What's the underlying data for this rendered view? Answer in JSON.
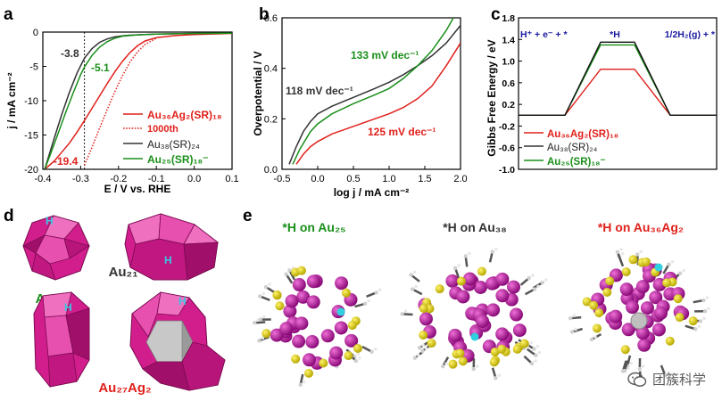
{
  "panels": {
    "a": "a",
    "b": "b",
    "c": "c",
    "d": "d",
    "e": "e"
  },
  "chart_data": [
    {
      "type": "line",
      "panel": "a",
      "xlabel": "E / V vs. RHE",
      "ylabel": "j / mA cm⁻²",
      "xlim": [
        -0.4,
        0.1
      ],
      "ylim": [
        -20,
        0
      ],
      "xticks": [
        "-0.4",
        "-0.3",
        "-0.2",
        "-0.1",
        "0.0",
        "0.1"
      ],
      "yticks": [
        "0",
        "-5",
        "-10",
        "-15",
        "-20"
      ],
      "reference_line_x": -0.29,
      "annotations": [
        {
          "text": "-3.8",
          "color": "#333333"
        },
        {
          "text": "-5.1",
          "color": "#1a8f1a"
        },
        {
          "text": "-19.4",
          "color": "#e0201b"
        }
      ],
      "legend": [
        {
          "text": "Au₃₆Ag₂(SR)₁₈",
          "color": "#e0201b",
          "style": "solid"
        },
        {
          "text": "1000th",
          "color": "#e0201b",
          "style": "dotted"
        },
        {
          "text": "Au₃₈(SR)₂₄",
          "color": "#333333",
          "style": "solid"
        },
        {
          "text": "Au₂₅(SR)₁₈⁻",
          "color": "#1a8f1a",
          "style": "solid"
        }
      ],
      "series": [
        {
          "color": "#e0201b",
          "x": [
            -0.395,
            -0.37,
            -0.35,
            -0.33,
            -0.31,
            -0.29,
            -0.27,
            -0.25,
            -0.23,
            -0.21,
            -0.19,
            -0.17,
            -0.15,
            -0.13,
            -0.1,
            -0.05,
            0.0,
            0.1
          ],
          "y": [
            -20,
            -18.8,
            -17.5,
            -16.2,
            -14.6,
            -12.9,
            -11.1,
            -9.3,
            -7.5,
            -5.8,
            -4.3,
            -3.0,
            -2.0,
            -1.3,
            -0.8,
            -0.5,
            -0.35,
            -0.2
          ]
        },
        {
          "color": "#e0201b",
          "dotted": true,
          "x": [
            -0.29,
            -0.27,
            -0.25,
            -0.23,
            -0.21,
            -0.19,
            -0.17,
            -0.15,
            -0.13,
            -0.1
          ],
          "y": [
            -19.4,
            -16.8,
            -14.0,
            -11.3,
            -8.7,
            -6.4,
            -4.4,
            -2.9,
            -1.8,
            -0.9
          ]
        },
        {
          "color": "#333333",
          "x": [
            -0.395,
            -0.37,
            -0.35,
            -0.33,
            -0.31,
            -0.29,
            -0.27,
            -0.25,
            -0.23,
            -0.21,
            -0.19,
            -0.17,
            -0.15,
            -0.1,
            -0.05,
            0.0,
            0.1
          ],
          "y": [
            -20,
            -15.5,
            -12.0,
            -8.8,
            -6.0,
            -3.8,
            -2.4,
            -1.5,
            -1.0,
            -0.7,
            -0.55,
            -0.45,
            -0.4,
            -0.3,
            -0.25,
            -0.2,
            -0.15
          ]
        },
        {
          "color": "#1a8f1a",
          "x": [
            -0.395,
            -0.38,
            -0.36,
            -0.34,
            -0.32,
            -0.3,
            -0.29,
            -0.27,
            -0.25,
            -0.23,
            -0.21,
            -0.19,
            -0.15,
            -0.1,
            0.0,
            0.1
          ],
          "y": [
            -20,
            -17.8,
            -14.8,
            -11.8,
            -8.9,
            -6.2,
            -5.1,
            -3.4,
            -2.2,
            -1.4,
            -0.9,
            -0.6,
            -0.4,
            -0.3,
            -0.2,
            -0.15
          ]
        }
      ]
    },
    {
      "type": "line",
      "panel": "b",
      "xlabel": "log j / mA cm⁻²",
      "ylabel": "Overpotential / V",
      "xlim": [
        -0.5,
        2.0
      ],
      "ylim": [
        0,
        0.6
      ],
      "xticks": [
        "-0.5",
        "0.0",
        "0.5",
        "1.0",
        "1.5",
        "2.0"
      ],
      "yticks": [
        "0.0",
        "0.2",
        "0.4",
        "0.6"
      ],
      "annotations": [
        {
          "text": "133 mV dec⁻¹",
          "color": "#1a8f1a"
        },
        {
          "text": "118 mV dec⁻¹",
          "color": "#333333"
        },
        {
          "text": "125 mV dec⁻¹",
          "color": "#e0201b"
        }
      ],
      "series": [
        {
          "color": "#e0201b",
          "x": [
            -0.3,
            -0.2,
            -0.1,
            0.0,
            0.2,
            0.5,
            0.8,
            1.0,
            1.2,
            1.4,
            1.6,
            1.8,
            2.0
          ],
          "y": [
            0.02,
            0.06,
            0.09,
            0.11,
            0.14,
            0.17,
            0.2,
            0.22,
            0.245,
            0.28,
            0.33,
            0.41,
            0.5
          ]
        },
        {
          "color": "#333333",
          "x": [
            -0.4,
            -0.3,
            -0.2,
            -0.1,
            0.0,
            0.2,
            0.5,
            0.8,
            1.0,
            1.2,
            1.4,
            1.6,
            1.8,
            2.0
          ],
          "y": [
            0.02,
            0.09,
            0.15,
            0.19,
            0.22,
            0.25,
            0.285,
            0.32,
            0.345,
            0.375,
            0.41,
            0.45,
            0.5,
            0.57
          ]
        },
        {
          "color": "#1a8f1a",
          "x": [
            -0.35,
            -0.25,
            -0.1,
            0.0,
            0.2,
            0.5,
            0.8,
            1.0,
            1.2,
            1.4,
            1.6,
            1.8,
            1.9
          ],
          "y": [
            0.02,
            0.08,
            0.15,
            0.18,
            0.22,
            0.26,
            0.295,
            0.32,
            0.36,
            0.41,
            0.47,
            0.55,
            0.6
          ]
        }
      ]
    },
    {
      "type": "line",
      "panel": "c",
      "ylabel": "Gibbs Free Energy / eV",
      "ylim": [
        -1.0,
        1.8
      ],
      "yticks": [
        "1.8",
        "1.4",
        "1.0",
        "0.6",
        "0.2",
        "-0.2",
        "-0.6",
        "-1.0"
      ],
      "states": [
        "H⁺ + e⁻ + *",
        "*H",
        "1/2H₂(g) + *"
      ],
      "legend": [
        {
          "text": "Au₃₆Ag₂(SR)₁₈",
          "color": "#e0201b"
        },
        {
          "text": "Au₃₈(SR)₂₄",
          "color": "#333333"
        },
        {
          "text": "Au₂₅(SR)₁₈⁻",
          "color": "#1a8f1a"
        }
      ],
      "series": [
        {
          "color": "#e0201b",
          "values": [
            0,
            0.85,
            0
          ]
        },
        {
          "color": "#1a8f1a",
          "values": [
            0,
            1.3,
            0
          ]
        },
        {
          "color": "#111111",
          "values": [
            0,
            1.35,
            0
          ]
        }
      ]
    }
  ],
  "panel_d": {
    "labels": [
      {
        "text": "Au₁₂",
        "color": "#1a8f1a"
      },
      {
        "text": "Au₂₁",
        "color": "#333333"
      },
      {
        "text": "Au₂₇Ag₂",
        "color": "#e0201b"
      }
    ],
    "h_marker": "H"
  },
  "panel_e": {
    "titles": [
      {
        "text": "*H on Au₂₅",
        "color": "#1a8f1a"
      },
      {
        "text": "*H on Au₃₈",
        "color": "#333333"
      },
      {
        "text": "*H on Au₃₆Ag₂",
        "color": "#e0201b"
      }
    ]
  },
  "watermark": {
    "text": "团簇科学",
    "icon": "wechat-icon"
  }
}
